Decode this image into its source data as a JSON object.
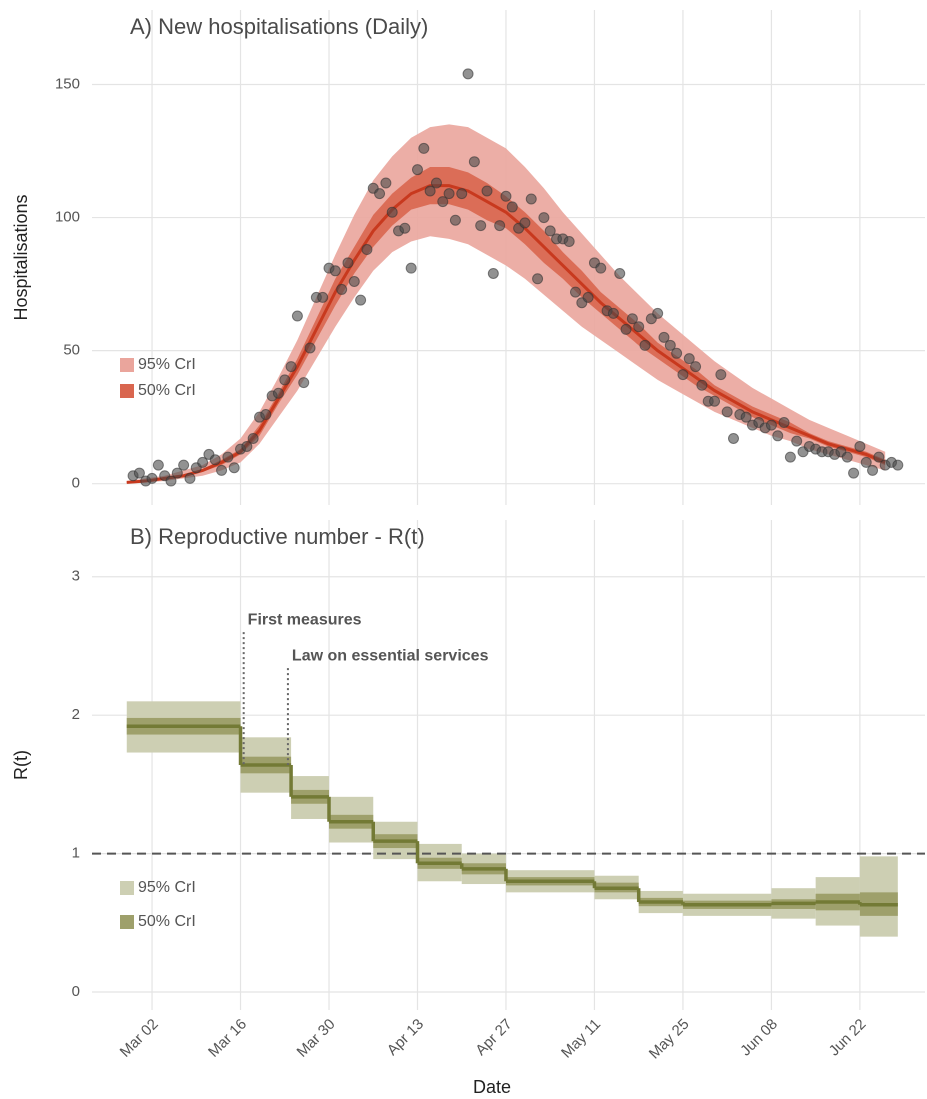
{
  "chart_data": [
    {
      "type": "band-line",
      "title": "A) New hospitalisations (Daily)",
      "ylabel": "Hospitalisations",
      "xlim": [
        52.5,
        184.3
      ],
      "ylim": [
        -8,
        178
      ],
      "yticks": [
        0,
        50,
        100,
        150
      ],
      "grid": true,
      "legend": "left",
      "x": [
        58,
        61,
        64,
        67,
        70,
        73,
        76,
        79,
        82,
        85,
        88,
        91,
        94,
        97,
        100,
        103,
        106,
        109,
        112,
        115,
        118,
        121,
        124,
        127,
        130,
        133,
        136,
        139,
        142,
        145,
        148,
        151,
        154,
        157,
        160,
        163,
        166,
        169,
        172,
        175,
        178
      ],
      "median": {
        "color": "#c8391e",
        "values": [
          0.5,
          1,
          2,
          3,
          5,
          8,
          12,
          20,
          32,
          44,
          58,
          72,
          84,
          95,
          103,
          109,
          112,
          112,
          110,
          106,
          102,
          96,
          89,
          82,
          75,
          68,
          62,
          56,
          50,
          45,
          40,
          35,
          31,
          27,
          24,
          21,
          18,
          15,
          13,
          11,
          8
        ]
      },
      "bands": [
        {
          "name": "95% CrI",
          "color": "#eaa59c",
          "lower": [
            0,
            0.5,
            1,
            2,
            3,
            5,
            8,
            15,
            25,
            35,
            47,
            59,
            70,
            80,
            87,
            91,
            93,
            92,
            90,
            86,
            82,
            77,
            71,
            65,
            59,
            54,
            49,
            44,
            39,
            35,
            31,
            27,
            24,
            21,
            18,
            16,
            13,
            11,
            9,
            7,
            5
          ],
          "upper": [
            1,
            2,
            3,
            5,
            7,
            11,
            17,
            27,
            40,
            54,
            70,
            86,
            101,
            114,
            123,
            130,
            134,
            135,
            134,
            130,
            126,
            119,
            111,
            102,
            94,
            86,
            78,
            71,
            64,
            58,
            52,
            46,
            41,
            36,
            32,
            28,
            24,
            21,
            18,
            15,
            12
          ]
        },
        {
          "name": "50% CrI",
          "color": "#d9664f",
          "lower": [
            0.3,
            0.8,
            1.7,
            2.6,
            4.5,
            7,
            11,
            18,
            30,
            41,
            54,
            67,
            79,
            89,
            97,
            103,
            105,
            105,
            103,
            99,
            96,
            90,
            83,
            77,
            70,
            64,
            58,
            52,
            47,
            42,
            37,
            33,
            29,
            25,
            22,
            19,
            17,
            14,
            12,
            10,
            7
          ],
          "upper": [
            0.7,
            1.2,
            2.3,
            3.4,
            5.5,
            9,
            13,
            22,
            34,
            47,
            62,
            77,
            89,
            101,
            109,
            115,
            119,
            119,
            117,
            113,
            108,
            102,
            95,
            87,
            80,
            72,
            66,
            60,
            53,
            48,
            43,
            37,
            33,
            29,
            26,
            23,
            19,
            16,
            14,
            12,
            9
          ]
        }
      ],
      "points": {
        "color": "#4a4a4a",
        "x": [
          59,
          60,
          61,
          62,
          63,
          64,
          65,
          66,
          67,
          68,
          69,
          70,
          71,
          72,
          73,
          74,
          75,
          76,
          77,
          78,
          79,
          80,
          81,
          82,
          83,
          84,
          85,
          86,
          87,
          88,
          89,
          90,
          91,
          92,
          93,
          94,
          95,
          96,
          97,
          98,
          99,
          100,
          101,
          102,
          103,
          104,
          105,
          106,
          107,
          108,
          109,
          110,
          111,
          112,
          113,
          114,
          115,
          116,
          117,
          118,
          119,
          120,
          121,
          122,
          123,
          124,
          125,
          126,
          127,
          128,
          129,
          130,
          131,
          132,
          133,
          134,
          135,
          136,
          137,
          138,
          139,
          140,
          141,
          142,
          143,
          144,
          145,
          146,
          147,
          148,
          149,
          150,
          151,
          152,
          153,
          154,
          155,
          156,
          157,
          158,
          159,
          160,
          161,
          162,
          163,
          164,
          165,
          166,
          167,
          168,
          169,
          170,
          171,
          172,
          173,
          174,
          175,
          176,
          177,
          178,
          179,
          180
        ],
        "values": [
          3,
          4,
          1,
          2,
          7,
          3,
          1,
          4,
          7,
          2,
          6,
          8,
          11,
          9,
          5,
          10,
          6,
          13,
          14,
          17,
          25,
          26,
          33,
          34,
          39,
          44,
          63,
          38,
          51,
          70,
          70,
          81,
          80,
          73,
          83,
          76,
          69,
          88,
          111,
          109,
          113,
          102,
          95,
          96,
          81,
          118,
          126,
          110,
          113,
          106,
          109,
          99,
          109,
          154,
          121,
          97,
          110,
          79,
          97,
          108,
          104,
          96,
          98,
          107,
          77,
          100,
          95,
          92,
          92,
          91,
          72,
          68,
          70,
          83,
          81,
          65,
          64,
          79,
          58,
          62,
          59,
          52,
          62,
          64,
          55,
          52,
          49,
          41,
          47,
          44,
          37,
          31,
          31,
          41,
          27,
          17,
          26,
          25,
          22,
          23,
          21,
          22,
          18,
          23,
          10,
          16,
          12,
          14,
          13,
          12,
          12,
          11,
          12,
          10,
          4,
          14,
          8,
          5,
          10,
          7,
          8,
          7
        ]
      }
    },
    {
      "type": "step-band",
      "title": "B) Reproductive number - R(t)",
      "ylabel": "R(t)",
      "xlabel": "Date",
      "xlim": [
        52.5,
        184.3
      ],
      "ylim": [
        -0.13,
        3.41
      ],
      "yticks": [
        0,
        1,
        2,
        3
      ],
      "grid": true,
      "legend": "left",
      "xticks": [
        {
          "value": 62,
          "label": "Mar 02"
        },
        {
          "value": 76,
          "label": "Mar 16"
        },
        {
          "value": 90,
          "label": "Mar 30"
        },
        {
          "value": 104,
          "label": "Apr 13"
        },
        {
          "value": 118,
          "label": "Apr 27"
        },
        {
          "value": 132,
          "label": "May 11"
        },
        {
          "value": 146,
          "label": "May 25"
        },
        {
          "value": 160,
          "label": "Jun 08"
        },
        {
          "value": 174,
          "label": "Jun 22"
        }
      ],
      "x_edges": [
        58,
        76,
        84,
        90,
        97,
        104,
        111,
        118,
        132,
        139,
        146,
        160,
        167,
        174,
        180
      ],
      "median": {
        "color": "#737a35",
        "values": [
          1.92,
          1.64,
          1.41,
          1.23,
          1.09,
          0.93,
          0.89,
          0.8,
          0.75,
          0.65,
          0.63,
          0.64,
          0.65,
          0.63
        ]
      },
      "bands": [
        {
          "name": "95% CrI",
          "color": "#cdcfb3",
          "lower": [
            1.73,
            1.44,
            1.25,
            1.08,
            0.96,
            0.8,
            0.78,
            0.72,
            0.67,
            0.57,
            0.55,
            0.53,
            0.48,
            0.4
          ],
          "upper": [
            2.1,
            1.84,
            1.56,
            1.41,
            1.23,
            1.07,
            1,
            0.88,
            0.84,
            0.73,
            0.71,
            0.75,
            0.83,
            0.98
          ]
        },
        {
          "name": "50% CrI",
          "color": "#9ea06b",
          "lower": [
            1.86,
            1.58,
            1.36,
            1.18,
            1.04,
            0.89,
            0.85,
            0.77,
            0.72,
            0.62,
            0.6,
            0.6,
            0.59,
            0.55
          ],
          "upper": [
            1.98,
            1.7,
            1.46,
            1.28,
            1.14,
            0.97,
            0.93,
            0.83,
            0.79,
            0.68,
            0.66,
            0.67,
            0.71,
            0.72
          ]
        }
      ],
      "reference_line": {
        "y": 1,
        "style": "dashed"
      },
      "annotations": [
        {
          "text": "First measures",
          "x": 76.5,
          "y": 2.6
        },
        {
          "text": "Law on essential services",
          "x": 83.5,
          "y": 2.34
        }
      ]
    }
  ]
}
